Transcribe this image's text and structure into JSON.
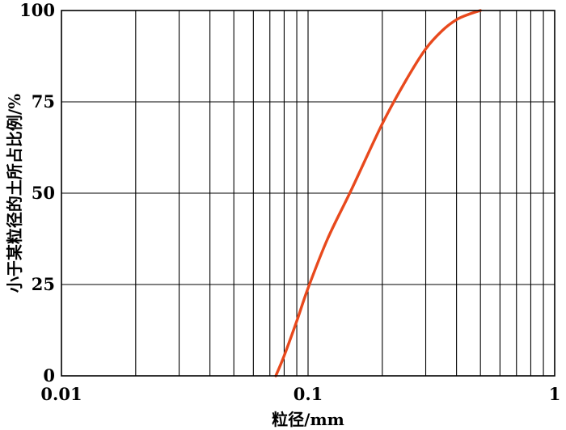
{
  "chart_data": {
    "type": "line",
    "title": "",
    "xlabel": "粒径/mm",
    "ylabel": "小于某粒径的土所占比例/%",
    "x_scale": "log",
    "xlim": [
      0.01,
      1
    ],
    "ylim": [
      0,
      100
    ],
    "x_ticks": [
      0.01,
      0.1,
      1
    ],
    "x_tick_labels": [
      "0.01",
      "0.1",
      "1"
    ],
    "y_ticks": [
      0,
      25,
      50,
      75,
      100
    ],
    "y_tick_labels": [
      "0",
      "25",
      "50",
      "75",
      "100"
    ],
    "grid": true,
    "series": [
      {
        "color": "#e8491d",
        "x": [
          0.074,
          0.08,
          0.09,
          0.1,
          0.12,
          0.15,
          0.2,
          0.25,
          0.3,
          0.35,
          0.4,
          0.45,
          0.5
        ],
        "y": [
          0,
          5.5,
          15,
          24,
          37.5,
          51,
          69,
          81,
          89.5,
          94.5,
          97.5,
          99,
          100
        ]
      }
    ]
  }
}
